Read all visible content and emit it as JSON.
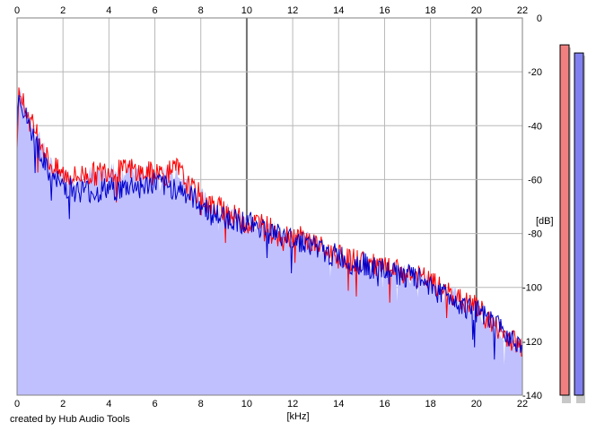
{
  "chart_data": {
    "type": "area",
    "xlabel": "[kHz]",
    "ylabel": "[dB]",
    "xlim": [
      0,
      22
    ],
    "ylim": [
      -140,
      0
    ],
    "x_ticks": [
      0,
      2,
      4,
      6,
      8,
      10,
      12,
      14,
      16,
      18,
      20,
      22
    ],
    "y_ticks": [
      0,
      -20,
      -40,
      -60,
      -80,
      -100,
      -120,
      -140
    ],
    "grid": true,
    "series": [
      {
        "color": "#ff0000",
        "x": [
          0,
          0.1,
          0.3,
          0.5,
          0.8,
          1.0,
          1.2,
          1.5,
          1.8,
          2.0,
          2.5,
          3.0,
          3.5,
          4.0,
          4.5,
          5.0,
          5.5,
          6.0,
          6.5,
          7.0,
          7.5,
          8.0,
          8.5,
          9.0,
          9.5,
          10.0,
          10.5,
          11.0,
          11.5,
          12.0,
          12.5,
          13.0,
          13.5,
          14.0,
          14.5,
          15.0,
          15.5,
          16.0,
          16.5,
          17.0,
          17.5,
          18.0,
          18.5,
          19.0,
          19.5,
          20.0,
          20.5,
          21.0,
          21.5,
          22.0
        ],
        "values": [
          -44,
          -24,
          -33,
          -37,
          -42,
          -44,
          -50,
          -55,
          -57,
          -58,
          -59,
          -58,
          -58,
          -56,
          -57,
          -56,
          -58,
          -57,
          -58,
          -56,
          -63,
          -66,
          -70,
          -71,
          -74,
          -76,
          -76,
          -78,
          -80,
          -81,
          -82,
          -84,
          -87,
          -87,
          -90,
          -90,
          -92,
          -93,
          -94,
          -95,
          -96,
          -98,
          -101,
          -103,
          -106,
          -107,
          -112,
          -116,
          -119,
          -122
        ]
      },
      {
        "color": "#0000cc",
        "x": [
          0,
          0.1,
          0.3,
          0.5,
          0.8,
          1.0,
          1.2,
          1.5,
          1.8,
          2.0,
          2.5,
          3.0,
          3.5,
          4.0,
          4.5,
          5.0,
          5.5,
          6.0,
          6.5,
          7.0,
          7.5,
          8.0,
          8.5,
          9.0,
          9.5,
          10.0,
          10.5,
          11.0,
          11.5,
          12.0,
          12.5,
          13.0,
          13.5,
          14.0,
          14.5,
          15.0,
          15.5,
          16.0,
          16.5,
          17.0,
          17.5,
          18.0,
          18.5,
          19.0,
          19.5,
          20.0,
          20.5,
          21.0,
          21.5,
          22.0
        ],
        "values": [
          -38,
          -27,
          -35,
          -40,
          -46,
          -49,
          -55,
          -60,
          -61,
          -62,
          -64,
          -64,
          -65,
          -63,
          -64,
          -62,
          -63,
          -61,
          -63,
          -63,
          -66,
          -69,
          -73,
          -74,
          -75,
          -76,
          -77,
          -79,
          -81,
          -82,
          -83,
          -85,
          -88,
          -88,
          -91,
          -91,
          -93,
          -94,
          -95,
          -96,
          -97,
          -99,
          -102,
          -104,
          -107,
          -109,
          -112,
          -115,
          -118,
          -121
        ]
      }
    ],
    "level_meters": [
      {
        "color": "#f08080",
        "level_db": -10
      },
      {
        "color": "#8080f0",
        "level_db": -13
      }
    ],
    "fill_color": "#c0c0ff"
  },
  "footer": {
    "credit": "created by Hub Audio Tools"
  }
}
